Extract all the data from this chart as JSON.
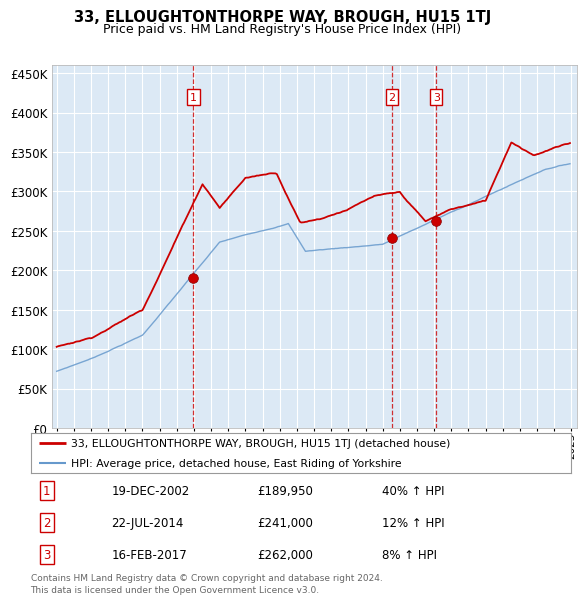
{
  "title": "33, ELLOUGHTONTHORPE WAY, BROUGH, HU15 1TJ",
  "subtitle": "Price paid vs. HM Land Registry's House Price Index (HPI)",
  "bg_color": "#dce9f5",
  "red_line_color": "#cc0000",
  "blue_line_color": "#6699cc",
  "marker_color": "#cc0000",
  "vline_color": "#cc0000",
  "grid_color": "#ffffff",
  "ylim": [
    0,
    460000
  ],
  "yticks": [
    0,
    50000,
    100000,
    150000,
    200000,
    250000,
    300000,
    350000,
    400000,
    450000
  ],
  "xlim_start": 1994.7,
  "xlim_end": 2025.3,
  "transactions": [
    {
      "year": 2002.97,
      "price": 189950,
      "label": "1"
    },
    {
      "year": 2014.55,
      "price": 241000,
      "label": "2"
    },
    {
      "year": 2017.12,
      "price": 262000,
      "label": "3"
    }
  ],
  "legend_entries": [
    "33, ELLOUGHTONTHORPE WAY, BROUGH, HU15 1TJ (detached house)",
    "HPI: Average price, detached house, East Riding of Yorkshire"
  ],
  "table_data": [
    {
      "num": "1",
      "date": "19-DEC-2002",
      "price": "£189,950",
      "change": "40% ↑ HPI"
    },
    {
      "num": "2",
      "date": "22-JUL-2014",
      "price": "£241,000",
      "change": "12% ↑ HPI"
    },
    {
      "num": "3",
      "date": "16-FEB-2017",
      "price": "£262,000",
      "change": "8% ↑ HPI"
    }
  ],
  "footer": "Contains HM Land Registry data © Crown copyright and database right 2024.\nThis data is licensed under the Open Government Licence v3.0."
}
